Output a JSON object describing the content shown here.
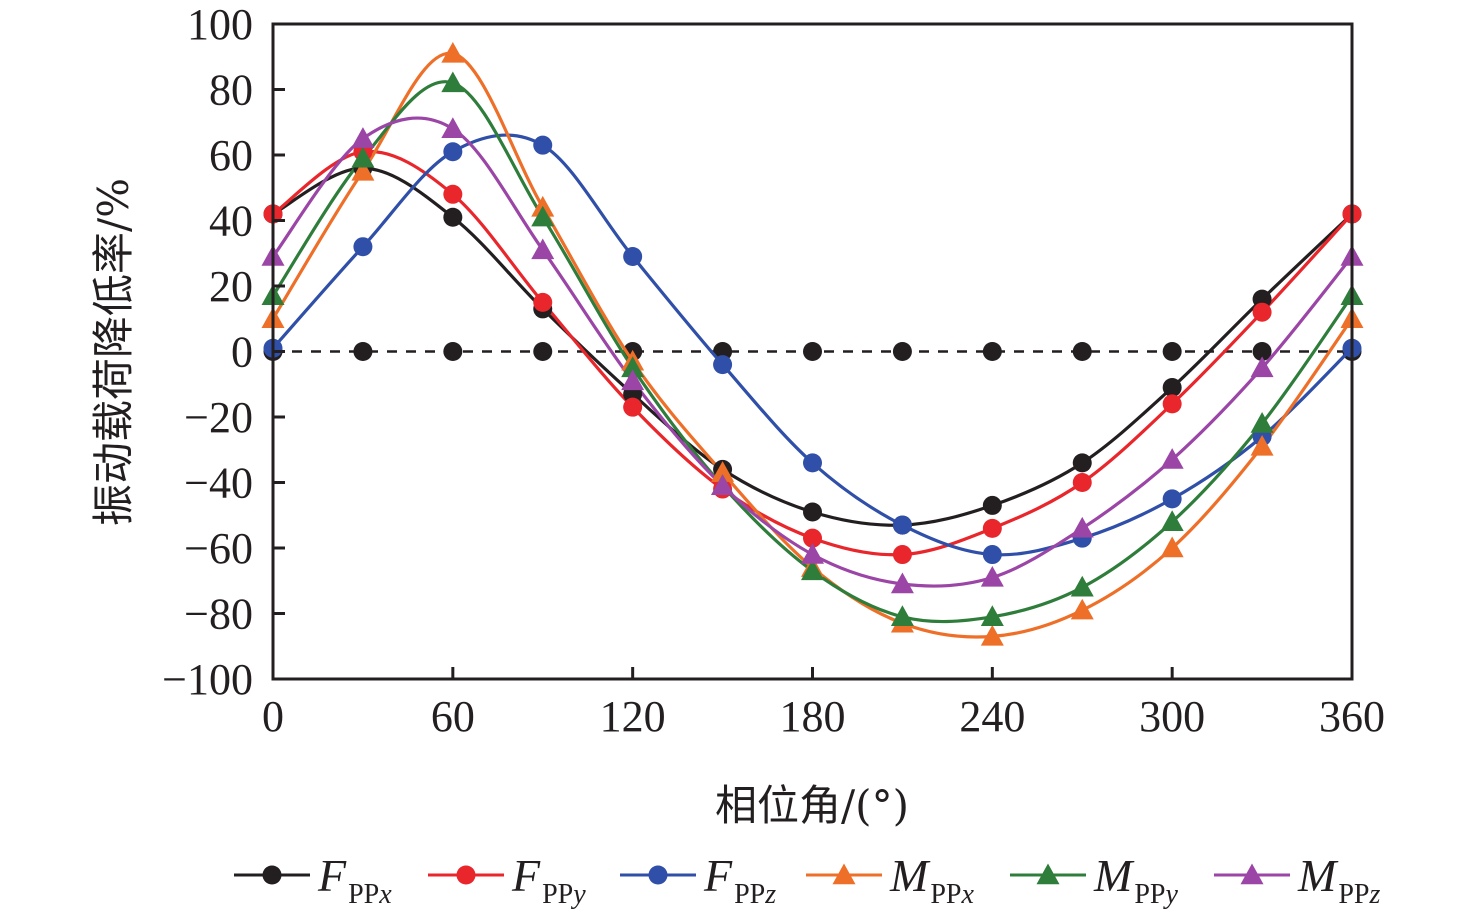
{
  "chart_data": {
    "type": "line",
    "title": "",
    "xlabel": "相位角/(°)",
    "ylabel": "振动载荷降低率/%",
    "xlim": [
      0,
      360
    ],
    "ylim": [
      -100,
      100
    ],
    "x_ticks": [
      "0",
      "60",
      "120",
      "180",
      "240",
      "300",
      "360"
    ],
    "x_tick_values": [
      0,
      60,
      120,
      180,
      240,
      300,
      360
    ],
    "y_ticks": [
      "100",
      "80",
      "60",
      "40",
      "20",
      "0",
      "−20",
      "−40",
      "−60",
      "−80",
      "−100"
    ],
    "y_tick_values": [
      100,
      80,
      60,
      40,
      20,
      0,
      -20,
      -40,
      -60,
      -80,
      -100
    ],
    "grid": false,
    "legend_position": "bottom",
    "x": [
      0,
      30,
      60,
      90,
      120,
      150,
      180,
      210,
      240,
      270,
      300,
      330,
      360
    ],
    "reference_line": {
      "name": "zero-baseline",
      "style": "dashed",
      "color": "#231f20",
      "marker": "circle",
      "values": [
        0,
        0,
        0,
        0,
        0,
        0,
        0,
        0,
        0,
        0,
        0,
        0,
        0
      ]
    },
    "series": [
      {
        "name": "F_PPx",
        "main": "F",
        "sub": "PP",
        "axis": "x",
        "color": "#231f20",
        "marker": "circle",
        "values": [
          42,
          56,
          41,
          13,
          -13,
          -36,
          -49,
          -53,
          -47,
          -34,
          -11,
          16,
          42
        ]
      },
      {
        "name": "F_PPy",
        "main": "F",
        "sub": "PP",
        "axis": "y",
        "color": "#e8262b",
        "marker": "circle",
        "values": [
          42,
          61,
          48,
          15,
          -17,
          -42,
          -57,
          -62,
          -54,
          -40,
          -16,
          12,
          42
        ]
      },
      {
        "name": "F_PPz",
        "main": "F",
        "sub": "PP",
        "axis": "z",
        "color": "#2f4fa8",
        "marker": "circle",
        "values": [
          1,
          32,
          61,
          63,
          29,
          -4,
          -34,
          -53,
          -62,
          -57,
          -45,
          -26,
          1
        ]
      },
      {
        "name": "M_PPx",
        "main": "M",
        "sub": "PP",
        "axis": "x",
        "color": "#ee6f28",
        "marker": "triangle",
        "values": [
          10,
          55,
          91,
          44,
          -3,
          -37,
          -66,
          -83,
          -87,
          -79,
          -60,
          -29,
          10
        ]
      },
      {
        "name": "M_PPy",
        "main": "M",
        "sub": "PP",
        "axis": "y",
        "color": "#2f7d3b",
        "marker": "triangle",
        "values": [
          17,
          59,
          82,
          41,
          -5,
          -41,
          -67,
          -81,
          -81,
          -72,
          -52,
          -22,
          17
        ]
      },
      {
        "name": "M_PPz",
        "main": "M",
        "sub": "PP",
        "axis": "z",
        "color": "#9b45a6",
        "marker": "triangle",
        "values": [
          29,
          65,
          68,
          31,
          -9,
          -41,
          -62,
          -71,
          -69,
          -54,
          -33,
          -5,
          29
        ]
      }
    ]
  }
}
